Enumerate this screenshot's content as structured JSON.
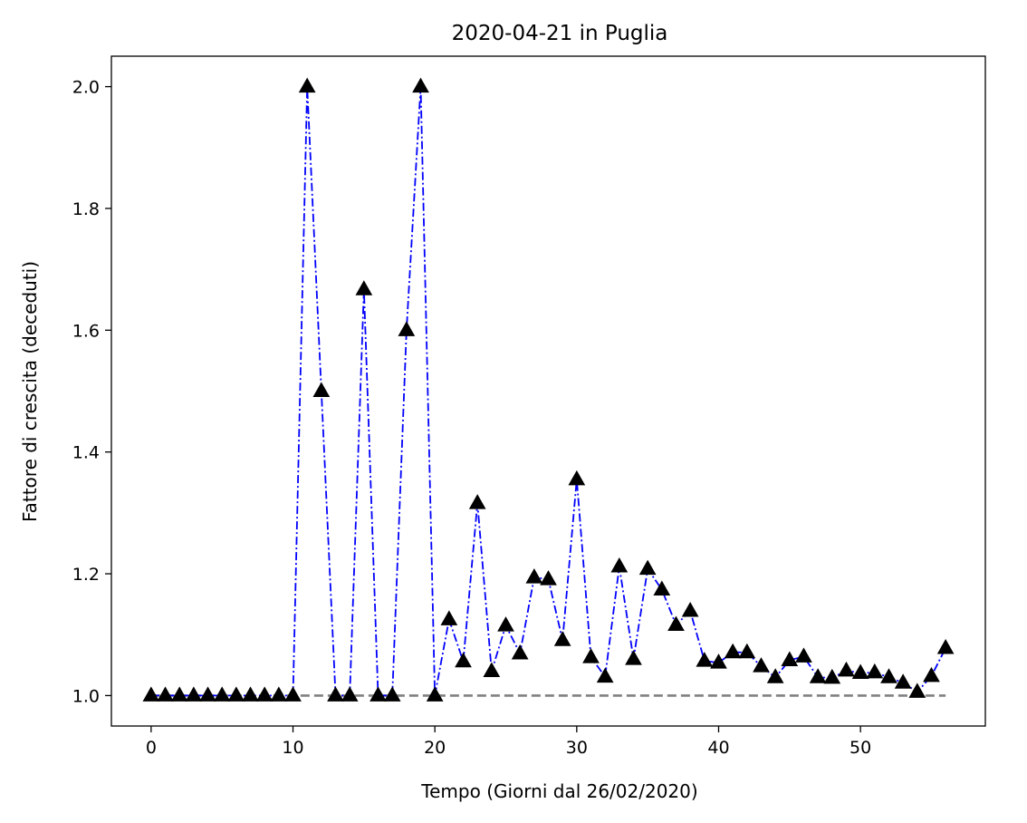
{
  "chart_data": {
    "type": "line",
    "title": "2020-04-21 in Puglia",
    "xlabel": "Tempo (Giorni dal 26/02/2020)",
    "ylabel": "Fattore di crescita (deceduti)",
    "xlim": [
      -2.8,
      58.8
    ],
    "ylim": [
      0.95,
      2.05
    ],
    "xticks": [
      0,
      10,
      20,
      30,
      40,
      50
    ],
    "yticks": [
      1.0,
      1.2,
      1.4,
      1.6,
      1.8,
      2.0
    ],
    "grid": false,
    "legend": "none",
    "series": [
      {
        "style": "dash-dot line with triangle markers",
        "line_color": "#0000ff",
        "marker_color": "#000000",
        "x": [
          0,
          1,
          2,
          3,
          4,
          5,
          6,
          7,
          8,
          9,
          10,
          11,
          12,
          13,
          14,
          15,
          16,
          17,
          18,
          19,
          20,
          21,
          22,
          23,
          24,
          25,
          26,
          27,
          28,
          29,
          30,
          31,
          32,
          33,
          34,
          35,
          36,
          37,
          38,
          39,
          40,
          41,
          42,
          43,
          44,
          45,
          46,
          47,
          48,
          49,
          50,
          51,
          52,
          53,
          54,
          55,
          56
        ],
        "y": [
          1.0,
          1.0,
          1.0,
          1.0,
          1.0,
          1.0,
          1.0,
          1.0,
          1.0,
          1.0,
          1.0,
          2.0,
          1.5,
          1.0,
          1.0,
          1.667,
          1.0,
          1.0,
          1.6,
          2.0,
          1.0,
          1.125,
          1.056,
          1.316,
          1.04,
          1.115,
          1.069,
          1.194,
          1.191,
          1.091,
          1.355,
          1.063,
          1.031,
          1.212,
          1.06,
          1.208,
          1.174,
          1.116,
          1.139,
          1.057,
          1.054,
          1.071,
          1.071,
          1.048,
          1.03,
          1.058,
          1.064,
          1.03,
          1.029,
          1.041,
          1.037,
          1.038,
          1.03,
          1.021,
          1.006,
          1.032,
          1.078
        ]
      },
      {
        "style": "dashed reference line",
        "line_color": "#808080",
        "x": [
          0,
          56
        ],
        "y": [
          1.0,
          1.0
        ]
      }
    ]
  }
}
